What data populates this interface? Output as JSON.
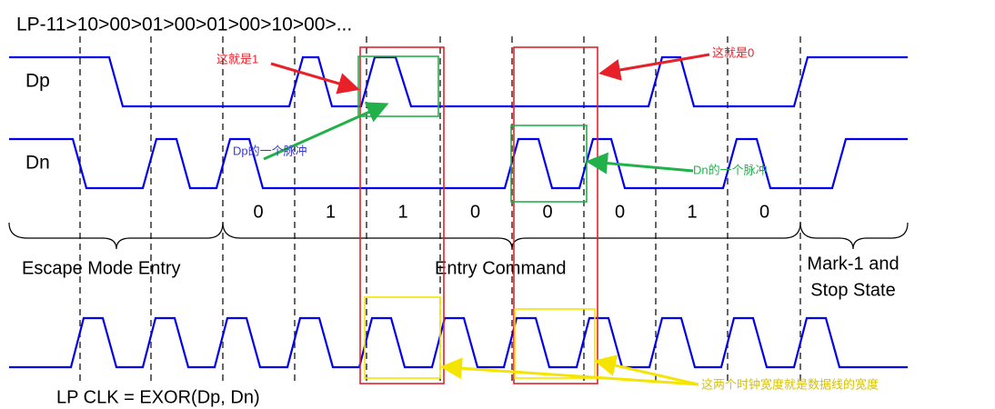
{
  "title": "LP-11>10>00>01>00>01>00>10>00>...",
  "signals": {
    "dp": "Dp",
    "dn": "Dn"
  },
  "bits": [
    "0",
    "1",
    "1",
    "0",
    "0",
    "0",
    "1",
    "0"
  ],
  "sections": [
    "Escape Mode Entry",
    "Entry Command",
    "Mark-1 and",
    "Stop State"
  ],
  "clock_label": "LP CLK = EXOR(Dp, Dn)",
  "annotations": [
    "这就是1",
    "这就是0",
    "Dp的一个脉冲",
    "Dn的一个脉冲",
    "这两个时钟宽度就是数据线的宽度"
  ]
}
